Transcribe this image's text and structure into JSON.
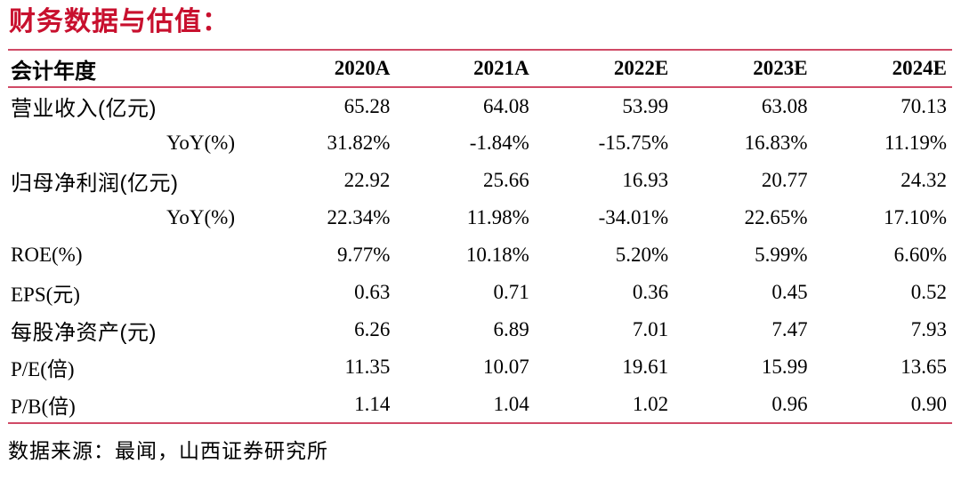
{
  "title": "财务数据与估值：",
  "table": {
    "header": [
      "会计年度",
      "2020A",
      "2021A",
      "2022E",
      "2023E",
      "2024E"
    ],
    "rows": [
      {
        "label": "营业收入(亿元)",
        "values": [
          "65.28",
          "64.08",
          "53.99",
          "63.08",
          "70.13"
        ]
      },
      {
        "label": "YoY(%)",
        "values": [
          "31.82%",
          "-1.84%",
          "-15.75%",
          "16.83%",
          "11.19%"
        ]
      },
      {
        "label": "归母净利润(亿元)",
        "values": [
          "22.92",
          "25.66",
          "16.93",
          "20.77",
          "24.32"
        ]
      },
      {
        "label": "YoY(%)",
        "values": [
          "22.34%",
          "11.98%",
          "-34.01%",
          "22.65%",
          "17.10%"
        ]
      },
      {
        "label": "ROE(%)",
        "values": [
          "9.77%",
          "10.18%",
          "5.20%",
          "5.99%",
          "6.60%"
        ]
      },
      {
        "label": "EPS(元)",
        "values": [
          "0.63",
          "0.71",
          "0.36",
          "0.45",
          "0.52"
        ]
      },
      {
        "label": "每股净资产(元)",
        "values": [
          "6.26",
          "6.89",
          "7.01",
          "7.47",
          "7.93"
        ]
      },
      {
        "label": "P/E(倍)",
        "values": [
          "11.35",
          "10.07",
          "19.61",
          "15.99",
          "13.65"
        ]
      },
      {
        "label": "P/B(倍)",
        "values": [
          "1.14",
          "1.04",
          "1.02",
          "0.96",
          "0.90"
        ]
      }
    ]
  },
  "footer": {
    "source_label": "数据来源：最闻，山西证券研究所"
  },
  "colors": {
    "title_accent": "#c8102e",
    "table_rule": "#d04a66",
    "text": "#000000",
    "background": "#ffffff"
  }
}
